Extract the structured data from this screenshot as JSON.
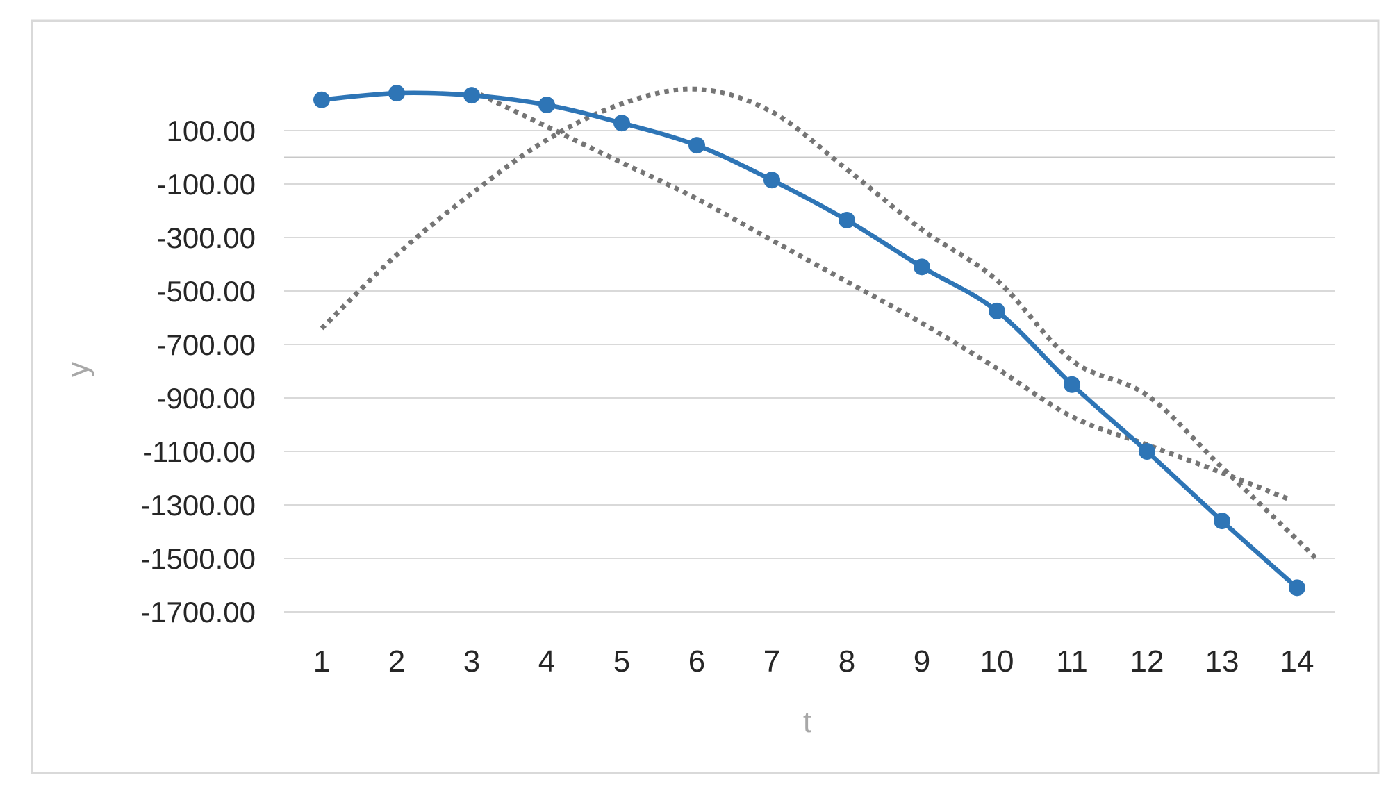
{
  "colors": {
    "background": "#FFFFFF",
    "chart_border": "#D9D9D9",
    "gridline": "#D9D9D9",
    "zero_axis_line": "#C8C8C8",
    "tick_label_text": "#262626",
    "axis_title_text": "#A8A8A8",
    "series_blue": "#2E75B6",
    "series_dotted_gray": "#757575"
  },
  "chart_data": {
    "type": "line",
    "title": "",
    "legend": "none",
    "grid": "horizontal",
    "x_axis": {
      "title": "t",
      "tick_labels": [
        "1",
        "2",
        "3",
        "4",
        "5",
        "6",
        "7",
        "8",
        "9",
        "10",
        "11",
        "12",
        "13",
        "14"
      ]
    },
    "y_axis": {
      "title": "y",
      "tick_labels": [
        "100.00",
        "-100.00",
        "-300.00",
        "-500.00",
        "-700.00",
        "-900.00",
        "-1100.00",
        "-1300.00",
        "-1500.00",
        "-1700.00"
      ],
      "tick_values": [
        100,
        -100,
        -300,
        -500,
        -700,
        -900,
        -1100,
        -1300,
        -1500,
        -1700
      ],
      "ylim": [
        -1700,
        300
      ],
      "major_unit": 200,
      "zero_axis_line": true
    },
    "series": [
      {
        "name": "dotted_gray_a",
        "style": "dotted",
        "markers": false,
        "color": "#757575",
        "x": [
          1,
          2,
          3,
          4,
          5,
          6,
          7,
          8,
          9,
          10,
          11,
          12,
          13,
          14,
          14.25
        ],
        "values": [
          -640,
          -365,
          -135,
          65,
          200,
          255,
          170,
          -45,
          -270,
          -460,
          -760,
          -890,
          -1160,
          -1430,
          -1500
        ]
      },
      {
        "name": "dotted_gray_b",
        "style": "dotted",
        "markers": false,
        "color": "#757575",
        "x": [
          3,
          4,
          5,
          6,
          7,
          8,
          9,
          10,
          11,
          12,
          13,
          13.9
        ],
        "values": [
          250,
          115,
          -20,
          -155,
          -310,
          -465,
          -620,
          -790,
          -970,
          -1075,
          -1180,
          -1280
        ]
      },
      {
        "name": "solid_blue_markers",
        "style": "solid",
        "markers": true,
        "color": "#2E75B6",
        "x": [
          1,
          2,
          3,
          4,
          5,
          6,
          7,
          8,
          9,
          10,
          11,
          12,
          13,
          14
        ],
        "values": [
          215,
          240,
          232,
          196,
          128,
          45,
          -85,
          -235,
          -410,
          -575,
          -850,
          -1100,
          -1360,
          -1610
        ]
      }
    ]
  }
}
